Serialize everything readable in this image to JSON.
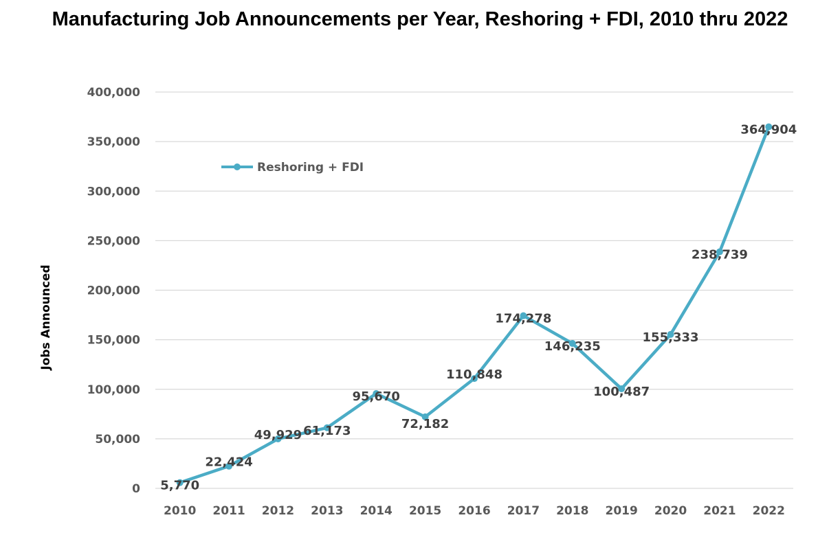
{
  "chart_data": {
    "type": "line",
    "title": "Manufacturing Job Announcements per Year, Reshoring + FDI, 2010 thru 2022",
    "xlabel": "",
    "ylabel": "Jobs Announced",
    "ylim": [
      0,
      400000
    ],
    "y_ticks": [
      "0",
      "50,000",
      "100,000",
      "150,000",
      "200,000",
      "250,000",
      "300,000",
      "350,000",
      "400,000"
    ],
    "categories": [
      "2010",
      "2011",
      "2012",
      "2013",
      "2014",
      "2015",
      "2016",
      "2017",
      "2018",
      "2019",
      "2020",
      "2021",
      "2022"
    ],
    "series": [
      {
        "name": "Reshoring + FDI",
        "values": [
          5770,
          22424,
          49929,
          61173,
          95670,
          72182,
          110848,
          174278,
          146235,
          100487,
          155333,
          238739,
          364904
        ],
        "labels": [
          "5,770",
          "22,424",
          "49,929",
          "61,173",
          "95,670",
          "72,182",
          "110,848",
          "174,278",
          "146,235",
          "100,487",
          "155,333",
          "238,739",
          "364,904"
        ]
      }
    ],
    "grid": true,
    "legend_position": "top-left",
    "colors": {
      "line": "#4BACC6",
      "grid": "#D9D9D9",
      "tick_text": "#595959",
      "label_text": "#404040"
    }
  }
}
